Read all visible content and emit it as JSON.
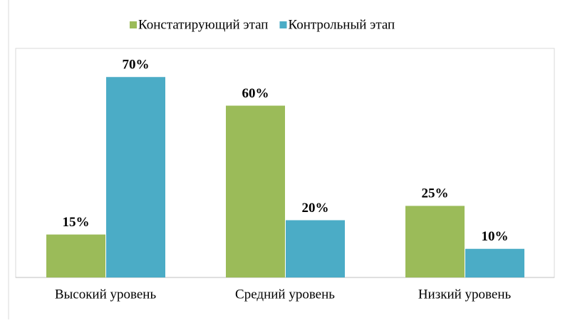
{
  "chart_data": {
    "type": "bar",
    "categories": [
      "Высокий уровень",
      "Средний уровень",
      "Низкий уровень"
    ],
    "series": [
      {
        "name": "Констатирующий этап",
        "color": "#9bbb59",
        "values": [
          15,
          60,
          25
        ],
        "value_labels": [
          "15%",
          "60%",
          "25%"
        ]
      },
      {
        "name": "Контрольный этап",
        "color": "#4bacc6",
        "values": [
          70,
          20,
          10
        ],
        "value_labels": [
          "70%",
          "20%",
          "10%"
        ]
      }
    ],
    "ylim": [
      0,
      80
    ],
    "legend": "top"
  }
}
